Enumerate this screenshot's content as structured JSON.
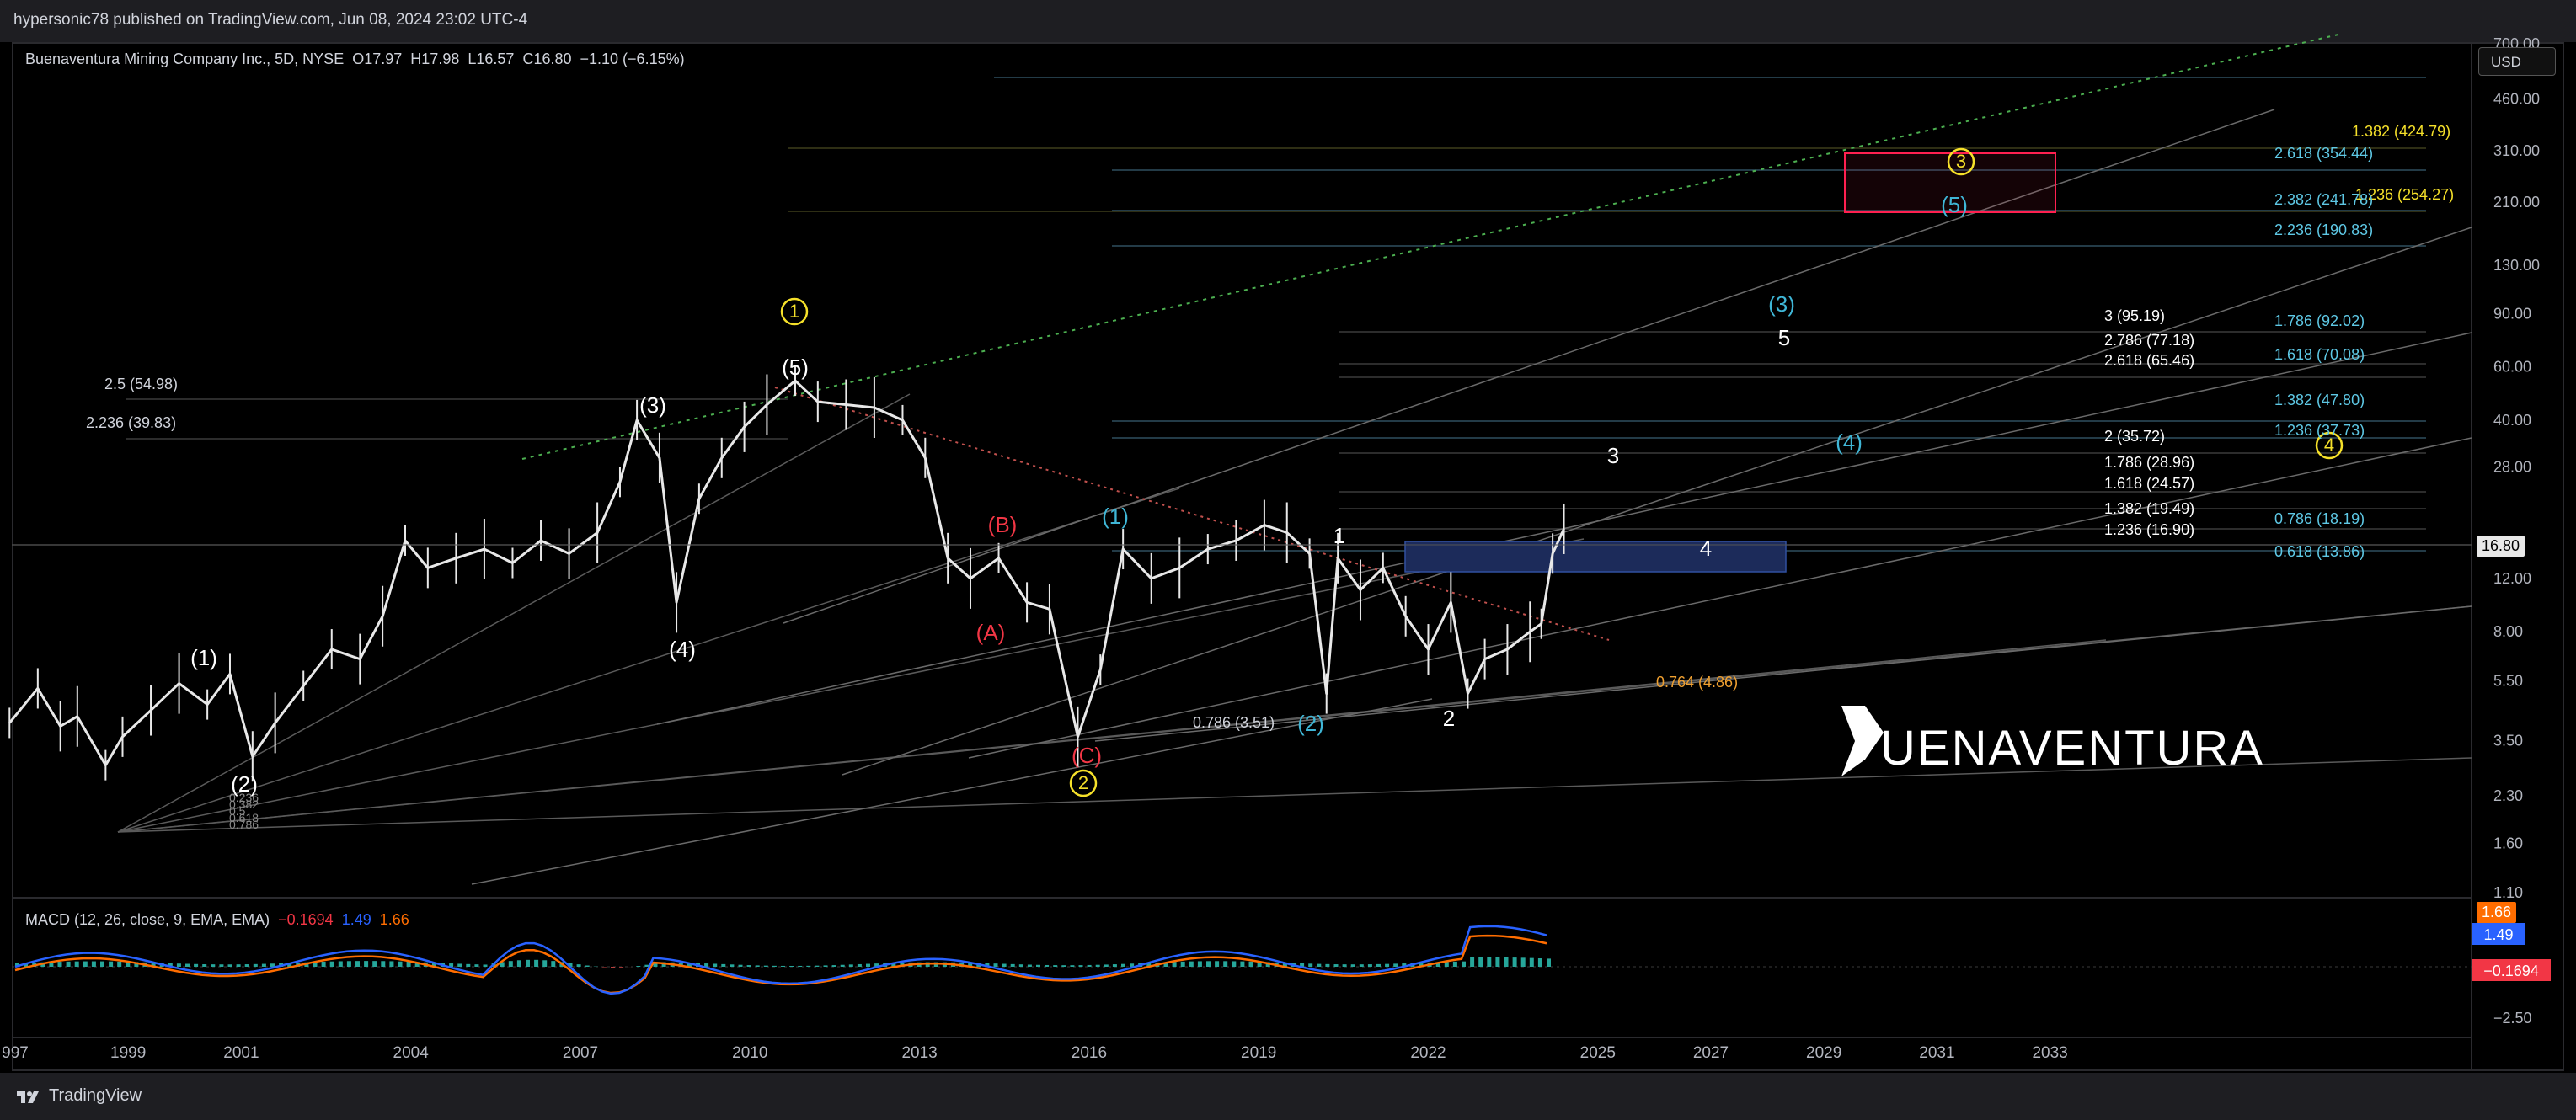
{
  "header": {
    "attribution": "hypersonic78 published on TradingView.com, Jun 08, 2024 23:02 UTC-4"
  },
  "symbol": {
    "name": "Buenaventura Mining Company Inc., 5D, NYSE",
    "open_label": "O",
    "open": "17.97",
    "high_label": "H",
    "high": "17.98",
    "low_label": "L",
    "low": "16.57",
    "close_label": "C",
    "close": "16.80",
    "change": "−1.10 (−6.15%)"
  },
  "currency_button": "USD",
  "macd": {
    "label": "MACD (12, 26, close, 9, EMA, EMA)",
    "histogram": "−0.1694",
    "macd": "1.49",
    "signal": "1.66"
  },
  "footer": {
    "brand": "TradingView"
  },
  "company_logo_text": "BUENAVENTURA",
  "colors": {
    "background": "#000000",
    "candles": "#e8e8e8",
    "wave_white": "#ffffff",
    "wave_cyan": "#3fb6d6",
    "wave_red": "#f23645",
    "wave_yellow": "#f5e02a",
    "fib_cyan": "#5ec8e5",
    "fib_orange": "#f0a030",
    "fib_yellow": "#f5e02a",
    "macd_blue": "#2962ff",
    "macd_orange": "#ff6d00",
    "box_blue": "#1c2b5a",
    "box_red": "#ff2050"
  },
  "chart_data": {
    "type": "line",
    "title": "Buenaventura Mining Company Inc., 5D, NYSE",
    "yscale": "log",
    "ylim": [
      1.1,
      700
    ],
    "x_ticks": [
      "997",
      "1999",
      "2001",
      "2004",
      "2007",
      "2010",
      "2013",
      "2016",
      "2019",
      "2022",
      "2025",
      "2027",
      "2029",
      "2031",
      "2033"
    ],
    "y_ticks": [
      "700.00",
      "460.00",
      "310.00",
      "210.00",
      "130.00",
      "90.00",
      "60.00",
      "40.00",
      "28.00",
      "16.80",
      "12.00",
      "8.00",
      "5.50",
      "3.50",
      "2.30",
      "1.60",
      "1.10"
    ],
    "current_price": "16.80",
    "series": [
      {
        "x": [
          1996.9,
          1997.4,
          1997.8,
          1998.1,
          1998.6,
          1998.9,
          1999.4,
          1999.9,
          2000.4,
          2000.8,
          2001.2,
          2001.6,
          2002.1,
          2002.6,
          2003.1,
          2003.5,
          2003.9,
          2004.3,
          2004.8,
          2005.3,
          2005.8,
          2006.3,
          2006.8,
          2007.3,
          2007.7,
          2008.0,
          2008.4,
          2008.7,
          2009.1,
          2009.5,
          2009.9,
          2010.3,
          2010.8,
          2011.2,
          2011.7,
          2012.2,
          2012.7,
          2013.1,
          2013.5,
          2013.9,
          2014.4,
          2014.9,
          2015.3,
          2015.8,
          2016.2,
          2016.6,
          2017.1,
          2017.6,
          2018.1,
          2018.6,
          2019.1,
          2019.5,
          2019.9,
          2020.2,
          2020.4,
          2020.8,
          2021.2,
          2021.6,
          2022.0,
          2022.4,
          2022.7,
          2023.0,
          2023.4,
          2023.8,
          2024.0,
          2024.2,
          2024.4
        ],
        "values": [
          4.0,
          5.2,
          3.9,
          4.2,
          2.9,
          3.6,
          4.4,
          5.4,
          4.6,
          5.8,
          3.1,
          4.0,
          5.3,
          7.0,
          6.5,
          9.0,
          16.0,
          13.0,
          14.0,
          15.0,
          13.5,
          16.0,
          14.5,
          17.0,
          25.0,
          40.0,
          30.0,
          10.0,
          22.0,
          30.0,
          38.0,
          45.0,
          54.0,
          46.0,
          45.0,
          44.0,
          40.0,
          30.0,
          14.0,
          12.0,
          14.0,
          10.0,
          9.5,
          3.6,
          6.0,
          15.0,
          12.0,
          13.0,
          15.0,
          16.0,
          18.0,
          17.0,
          14.5,
          5.0,
          14.0,
          11.0,
          13.0,
          9.0,
          7.0,
          10.0,
          5.0,
          6.5,
          7.0,
          8.0,
          8.5,
          14.5,
          17.5
        ]
      }
    ],
    "wave_labels": [
      {
        "text": "(1)",
        "color": "white"
      },
      {
        "text": "(2)",
        "color": "white"
      },
      {
        "text": "(3)",
        "color": "white"
      },
      {
        "text": "(4)",
        "color": "white"
      },
      {
        "text": "(5)",
        "color": "white"
      },
      {
        "text": "1",
        "color": "yellow-circle"
      },
      {
        "text": "2",
        "color": "yellow-circle"
      },
      {
        "text": "3",
        "color": "yellow-circle"
      },
      {
        "text": "4",
        "color": "yellow-circle"
      },
      {
        "text": "(A)",
        "color": "red"
      },
      {
        "text": "(B)",
        "color": "red"
      },
      {
        "text": "(C)",
        "color": "red"
      },
      {
        "text": "(1)",
        "color": "cyan"
      },
      {
        "text": "(2)",
        "color": "cyan"
      },
      {
        "text": "(3)",
        "color": "cyan"
      },
      {
        "text": "(4)",
        "color": "cyan"
      },
      {
        "text": "(5)",
        "color": "cyan"
      },
      {
        "text": "1",
        "color": "white"
      },
      {
        "text": "2",
        "color": "white"
      },
      {
        "text": "3",
        "color": "white"
      },
      {
        "text": "4",
        "color": "white"
      },
      {
        "text": "5",
        "color": "white"
      }
    ],
    "fib_labels": [
      "2.5 (54.98)",
      "2.236 (39.83)",
      "0.786 (3.51)",
      "0.764 (4.86)",
      "1.382 (424.79)",
      "1.236 (254.27)",
      "2.618 (354.44)",
      "2.382 (241.78)",
      "2.236 (190.83)",
      "1.786 (92.02)",
      "1.618 (70.08)",
      "1.382 (47.80)",
      "1.236 (37.73)",
      "0.786 (18.19)",
      "0.618 (13.86)",
      "3 (95.19)",
      "2.786 (77.18)",
      "2.618 (65.46)",
      "2 (35.72)",
      "1.786 (28.96)",
      "1.618 (24.57)",
      "1.382 (19.49)",
      "1.236 (16.90)"
    ],
    "fan_labels": [
      "0.236",
      "0.382",
      "0.5",
      "0.618",
      "0.786"
    ],
    "macd_axis": [
      "1.66",
      "1.49",
      "−0.1694",
      "−2.50"
    ],
    "grid": false,
    "legend": "top-left"
  }
}
